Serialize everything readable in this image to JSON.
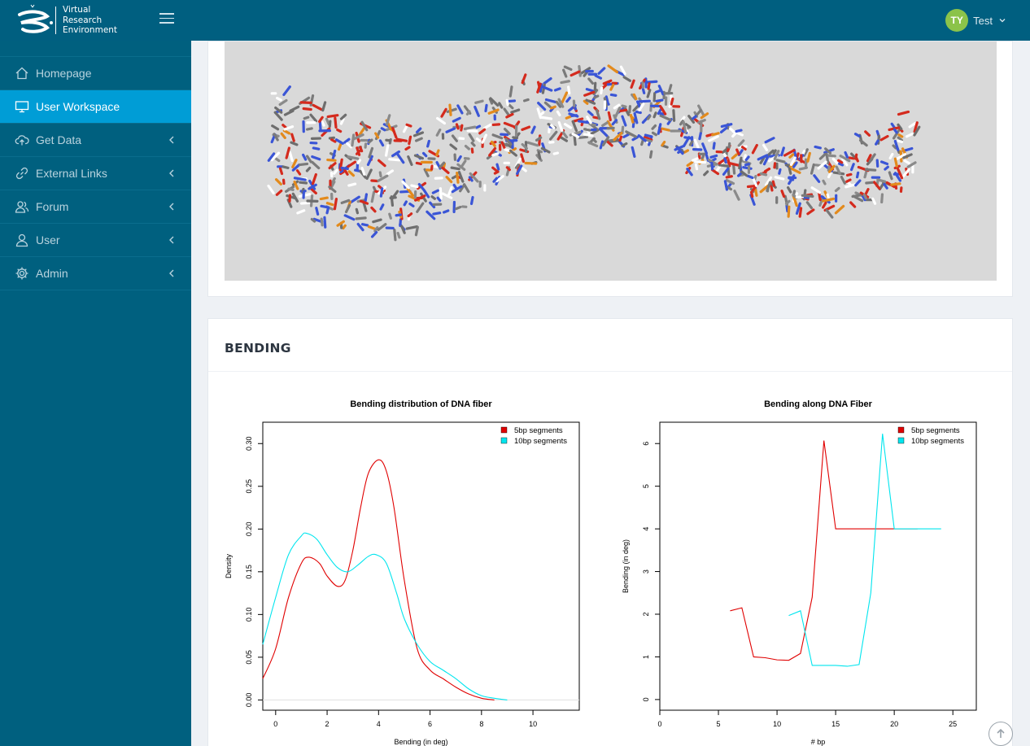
{
  "header": {
    "logo_lines": [
      "Virtual",
      "Research",
      "Environment"
    ],
    "user_initials": "TY",
    "user_name": "Test"
  },
  "sidebar": {
    "items": [
      {
        "label": "Homepage",
        "icon": "home-icon",
        "active": false,
        "has_submenu": false
      },
      {
        "label": "User Workspace",
        "icon": "monitor-icon",
        "active": true,
        "has_submenu": false
      },
      {
        "label": "Get Data",
        "icon": "cloud-upload-icon",
        "active": false,
        "has_submenu": true
      },
      {
        "label": "External Links",
        "icon": "link-icon",
        "active": false,
        "has_submenu": true
      },
      {
        "label": "Forum",
        "icon": "users-icon",
        "active": false,
        "has_submenu": true
      },
      {
        "label": "User",
        "icon": "user-icon",
        "active": false,
        "has_submenu": true
      },
      {
        "label": "Admin",
        "icon": "gear-icon",
        "active": false,
        "has_submenu": true
      }
    ]
  },
  "colors": {
    "header_bg": "#005f80",
    "sidebar_bg": "#00607f",
    "active_bg": "#009dd6",
    "avatar_bg": "#8bc34a",
    "series_5bp": "#e00000",
    "series_10bp": "#00e5ee"
  },
  "bending_panel": {
    "title": "BENDING"
  },
  "chart_data": [
    {
      "type": "line",
      "title": "Bending distribution of DNA fiber",
      "xlabel": "Bending (in deg)",
      "ylabel": "Density",
      "xlim": [
        -0.5,
        11.8
      ],
      "ylim": [
        -0.012,
        0.325
      ],
      "xticks": [
        "0",
        "2",
        "4",
        "6",
        "8",
        "10"
      ],
      "yticks": [
        "0.00",
        "0.05",
        "0.10",
        "0.15",
        "0.20",
        "0.25",
        "0.30"
      ],
      "legend": [
        "5bp segments",
        "10bp segments"
      ],
      "legend_position": "top-right",
      "series": [
        {
          "name": "5bp segments",
          "color": "#e00000",
          "x": [
            -0.5,
            0,
            0.5,
            1,
            1.3,
            1.7,
            2,
            2.4,
            2.7,
            3,
            3.3,
            3.6,
            4,
            4.3,
            4.6,
            5,
            5.5,
            6,
            6.5,
            7,
            7.5,
            8,
            8.5
          ],
          "y": [
            0.025,
            0.06,
            0.12,
            0.16,
            0.167,
            0.16,
            0.145,
            0.133,
            0.14,
            0.175,
            0.225,
            0.265,
            0.281,
            0.268,
            0.225,
            0.14,
            0.06,
            0.035,
            0.025,
            0.015,
            0.007,
            0.002,
            0.0
          ]
        },
        {
          "name": "10bp segments",
          "color": "#00e5ee",
          "x": [
            -0.5,
            0,
            0.5,
            1,
            1.2,
            1.6,
            2,
            2.4,
            2.8,
            3.2,
            3.6,
            3.9,
            4.3,
            4.7,
            5,
            5.5,
            6,
            6.5,
            7,
            7.5,
            8,
            8.5,
            9
          ],
          "y": [
            0.065,
            0.12,
            0.17,
            0.192,
            0.195,
            0.188,
            0.17,
            0.155,
            0.15,
            0.158,
            0.168,
            0.17,
            0.16,
            0.125,
            0.095,
            0.065,
            0.045,
            0.035,
            0.025,
            0.013,
            0.005,
            0.002,
            0.0
          ]
        }
      ]
    },
    {
      "type": "line",
      "title": "Bending along DNA Fiber",
      "xlabel": "# bp",
      "ylabel": "Bending (in deg)",
      "xlim": [
        0,
        27
      ],
      "ylim": [
        -0.25,
        6.5
      ],
      "xticks": [
        "0",
        "5",
        "10",
        "15",
        "20",
        "25"
      ],
      "yticks": [
        "0",
        "1",
        "2",
        "3",
        "4",
        "5",
        "6"
      ],
      "legend": [
        "5bp segments",
        "10bp segments"
      ],
      "legend_position": "top-right",
      "series": [
        {
          "name": "5bp segments",
          "color": "#e00000",
          "x": [
            6,
            7,
            8,
            9,
            10,
            11,
            12,
            13,
            14,
            15,
            16,
            17,
            18,
            19,
            20,
            21,
            22
          ],
          "y": [
            2.08,
            2.15,
            1.0,
            0.98,
            0.93,
            0.92,
            1.08,
            2.4,
            6.07,
            4.0,
            4.0,
            4.0,
            4.0,
            4.0,
            4.0,
            4.0,
            4.0
          ]
        },
        {
          "name": "10bp segments",
          "color": "#00e5ee",
          "x": [
            11,
            12,
            13,
            14,
            15,
            16,
            17,
            18,
            19,
            20,
            21,
            22,
            23,
            24
          ],
          "y": [
            1.97,
            2.08,
            0.8,
            0.8,
            0.8,
            0.78,
            0.82,
            2.5,
            6.23,
            4.0,
            4.0,
            4.0,
            4.0,
            4.0
          ]
        }
      ]
    }
  ]
}
